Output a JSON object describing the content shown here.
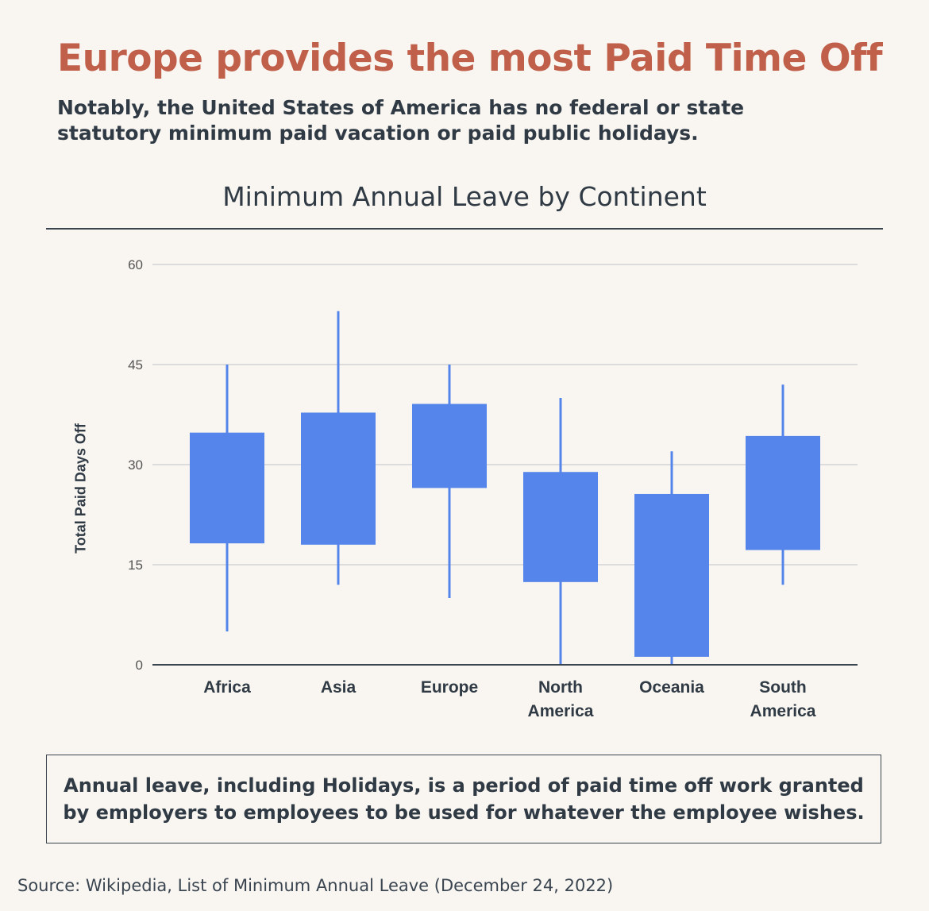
{
  "header": {
    "headline": "Europe provides the most Paid Time Off",
    "subheadline": "Notably, the United States of America has no federal or state statutory minimum paid vacation or paid public holidays."
  },
  "note": "Annual leave, including Holidays, is a period of paid time off work granted by employers to employees to be used for whatever the employee wishes.",
  "source": "Source: Wikipedia, List of Minimum Annual Leave (December 24, 2022)",
  "colors": {
    "background": "#f9f6f2",
    "headline": "#c0604a",
    "box": "#5585ea",
    "text": "#2f3a44",
    "grid": "#d4d4d4"
  },
  "chart_data": {
    "type": "candlestick",
    "title": "Minimum Annual Leave by Continent",
    "ylabel": "Total Paid Days Off",
    "xlabel": "",
    "ylim": [
      0,
      60
    ],
    "yticks": [
      0,
      15,
      30,
      45,
      60
    ],
    "grid": true,
    "categories": [
      {
        "label_lines": [
          "Africa"
        ],
        "min": 5,
        "q1": 18.2,
        "q3": 34.8,
        "max": 45
      },
      {
        "label_lines": [
          "Asia"
        ],
        "min": 12,
        "q1": 18,
        "q3": 37.8,
        "max": 53
      },
      {
        "label_lines": [
          "Europe"
        ],
        "min": 10,
        "q1": 26.5,
        "q3": 39.1,
        "max": 45
      },
      {
        "label_lines": [
          "North",
          "America"
        ],
        "min": 0,
        "q1": 12.4,
        "q3": 28.9,
        "max": 40
      },
      {
        "label_lines": [
          "Oceania"
        ],
        "min": 0,
        "q1": 1.2,
        "q3": 25.6,
        "max": 32
      },
      {
        "label_lines": [
          "South",
          "America"
        ],
        "min": 12,
        "q1": 17.2,
        "q3": 34.3,
        "max": 42
      }
    ]
  }
}
